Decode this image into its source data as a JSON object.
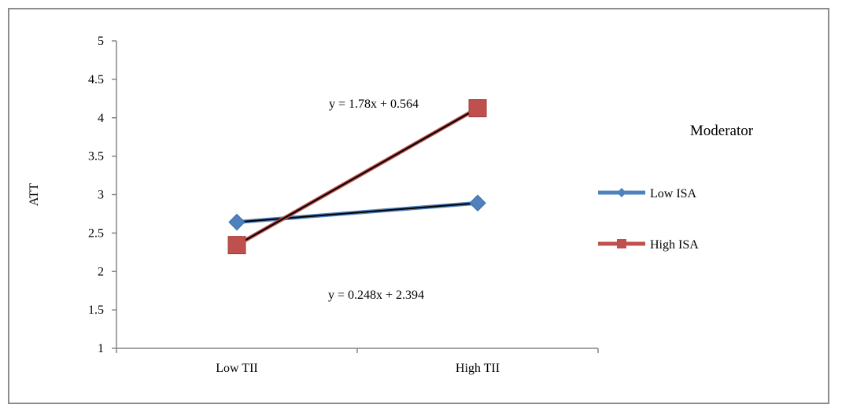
{
  "chart_data": {
    "type": "line",
    "categories": [
      "Low TII",
      "High TII"
    ],
    "ylabel": "ATT",
    "xlabel": "",
    "ylim": [
      1,
      5
    ],
    "yticks": [
      "1",
      "1.5",
      "2",
      "2.5",
      "3",
      "3.5",
      "4",
      "4.5",
      "5"
    ],
    "grid": false,
    "legend": {
      "title": "Moderator",
      "placement": "right"
    },
    "series": [
      {
        "name": "Low ISA",
        "values": [
          2.642,
          2.89
        ],
        "color": "#4f81bd",
        "marker": "diamond",
        "trendline": {
          "label": "y = 0.248x + 2.394"
        }
      },
      {
        "name": "High ISA",
        "values": [
          2.344,
          4.124
        ],
        "color": "#c0504d",
        "marker": "square",
        "trendline": {
          "label": "y = 1.78x + 0.564"
        }
      }
    ]
  }
}
